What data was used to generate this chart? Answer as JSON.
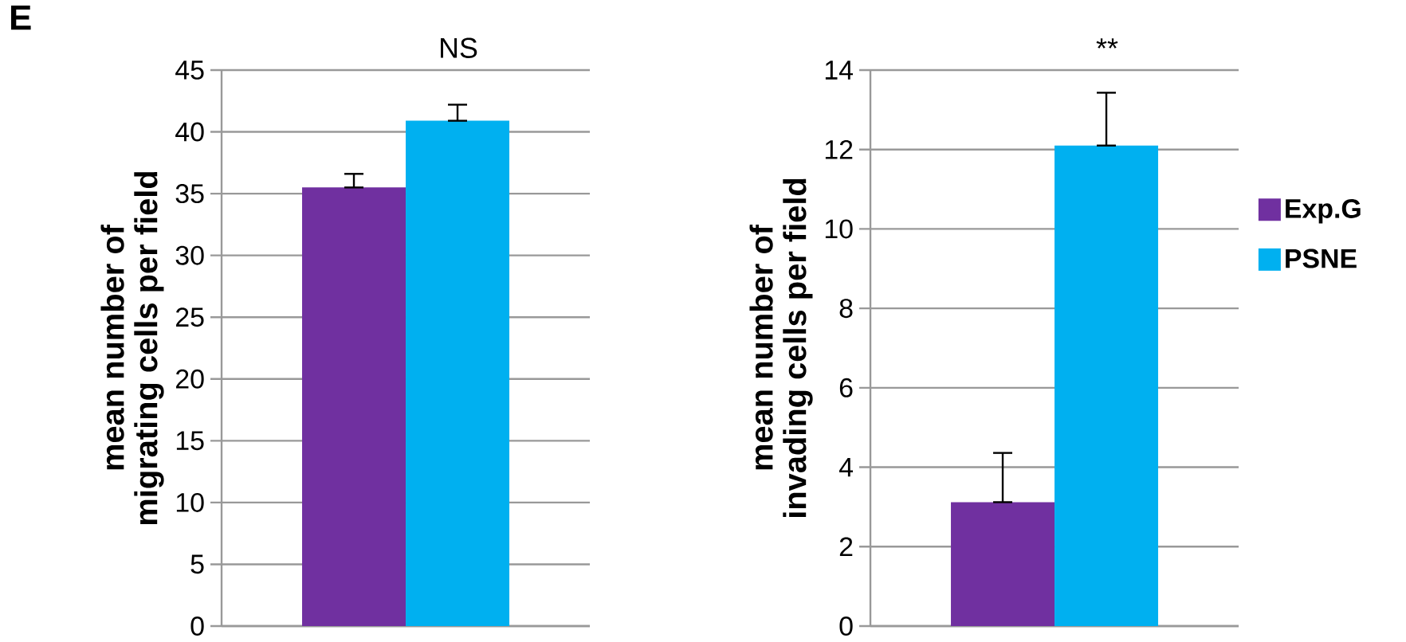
{
  "chart_data": [
    {
      "type": "bar",
      "categories": [
        null
      ],
      "ylabel": "mean number of\nmigrating cells per field",
      "ylim": [
        0,
        45
      ],
      "yticks": [
        0,
        5,
        10,
        15,
        20,
        25,
        30,
        35,
        40,
        45
      ],
      "grid": "y",
      "legend": false,
      "annotations": [
        "E",
        "NS"
      ],
      "series": [
        {
          "color": "#7030a0",
          "values": [
            35.5
          ],
          "errors": [
            [
              35.5,
              36.6
            ]
          ]
        },
        {
          "color": "#00b0f0",
          "values": [
            40.9
          ],
          "errors": [
            [
              40.9,
              42.2
            ]
          ]
        }
      ]
    },
    {
      "type": "bar",
      "categories": [
        null
      ],
      "ylabel": "mean number of\ninvading cells  per field",
      "ylim": [
        0,
        14
      ],
      "yticks": [
        0,
        2,
        4,
        6,
        8,
        10,
        12,
        14
      ],
      "grid": "y",
      "legend": "right",
      "annotations": [
        "**"
      ],
      "series": [
        {
          "name": "Exp.G",
          "color": "#7030a0",
          "values": [
            3.12
          ],
          "errors": [
            [
              3.12,
              4.36
            ]
          ]
        },
        {
          "name": "PSNE",
          "color": "#00b0f0",
          "values": [
            12.1
          ],
          "errors": [
            [
              12.1,
              13.43
            ]
          ]
        }
      ]
    }
  ]
}
